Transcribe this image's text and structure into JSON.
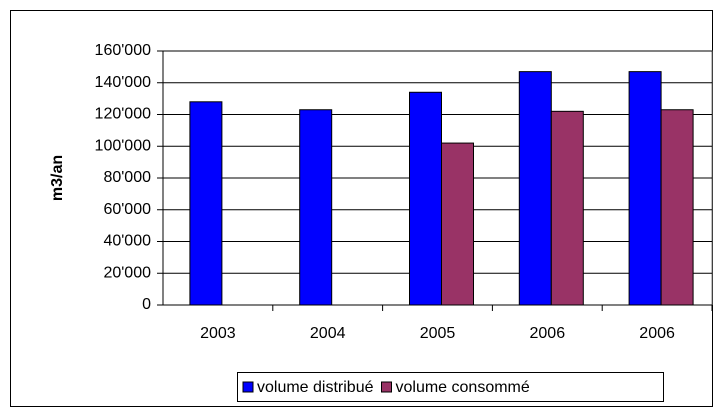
{
  "chart_data": {
    "type": "bar",
    "y_label": "m3/an",
    "categories": [
      "2003",
      "2004",
      "2005",
      "2006",
      "2006"
    ],
    "series": [
      {
        "name": "volume distribué",
        "color": "#0000ff",
        "values": [
          128000,
          123000,
          134000,
          147000,
          147000
        ]
      },
      {
        "name": "volume consommé",
        "color": "#993366",
        "values": [
          null,
          null,
          102000,
          122000,
          123000
        ]
      }
    ],
    "ylim": [
      0,
      160000
    ],
    "yticks": [
      0,
      {
        "value": 20000,
        "label": "20'000"
      },
      {
        "value": 40000,
        "label": "40'000"
      },
      {
        "value": 60000,
        "label": "60'000"
      },
      {
        "value": 80000,
        "label": "80'000"
      },
      {
        "value": 100000,
        "label": "100'000"
      },
      {
        "value": 120000,
        "label": "120'000"
      },
      {
        "value": 140000,
        "label": "140'000"
      },
      {
        "value": 160000,
        "label": "160'000"
      }
    ],
    "grid": true,
    "legend": "bottom"
  }
}
